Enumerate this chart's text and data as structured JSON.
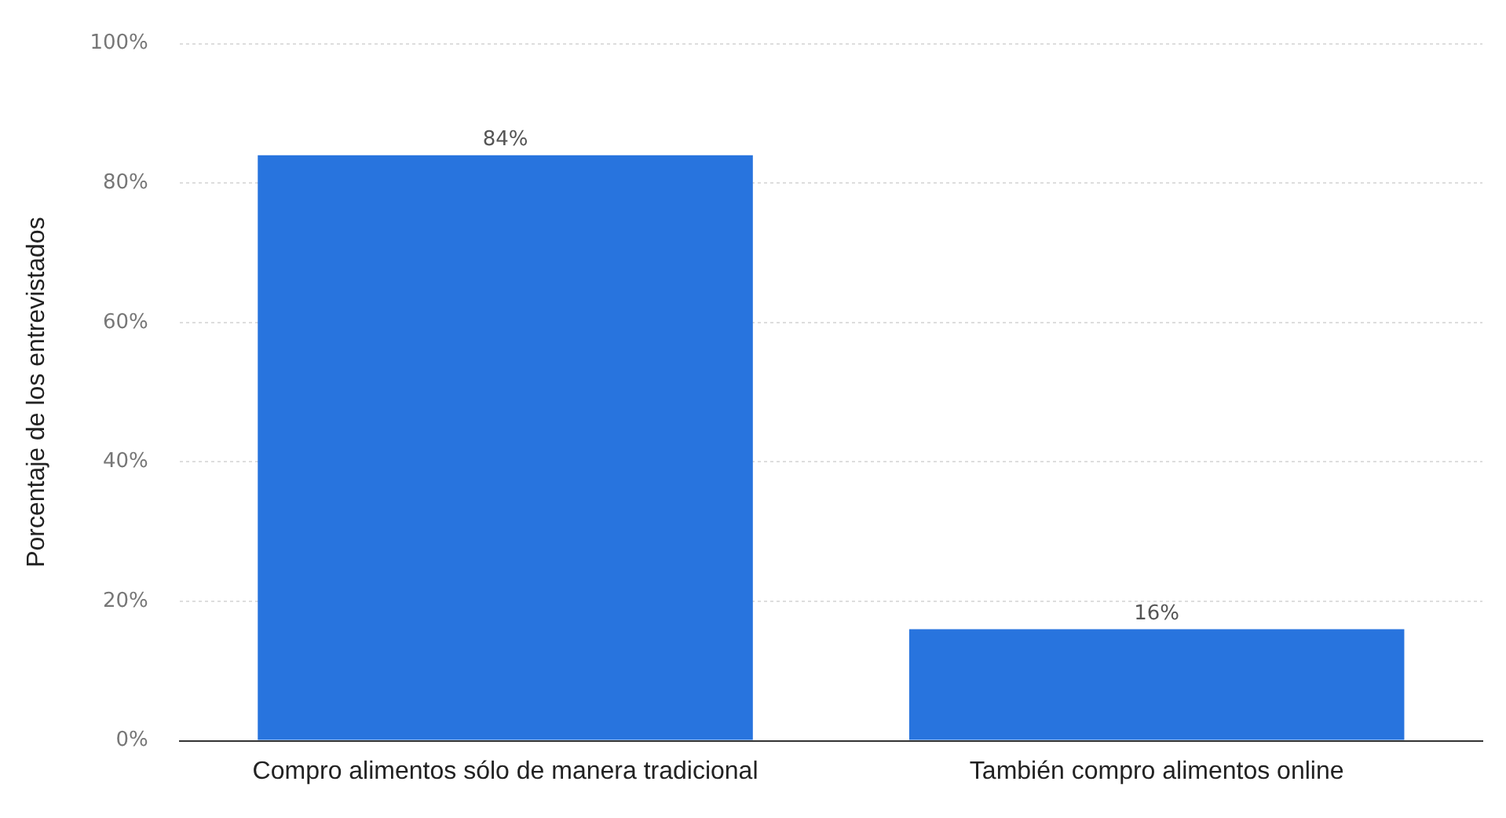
{
  "chart_data": {
    "type": "bar",
    "ylabel": "Porcentaje de los entrevistados",
    "categories": [
      "Compro alimentos sólo de manera tradicional",
      "También compro alimentos online"
    ],
    "values": [
      84,
      16
    ],
    "color": "#2874de",
    "ylim": [
      0,
      100
    ],
    "yticks": [
      {
        "value": 0,
        "label": "0%"
      },
      {
        "value": 20,
        "label": "20%"
      },
      {
        "value": 40,
        "label": "40%"
      },
      {
        "value": 60,
        "label": "60%"
      },
      {
        "value": 80,
        "label": "80%"
      },
      {
        "value": 100,
        "label": "100%"
      }
    ],
    "grid": "y",
    "data_labels": true,
    "value_labels": [
      "84%",
      "16%"
    ]
  }
}
